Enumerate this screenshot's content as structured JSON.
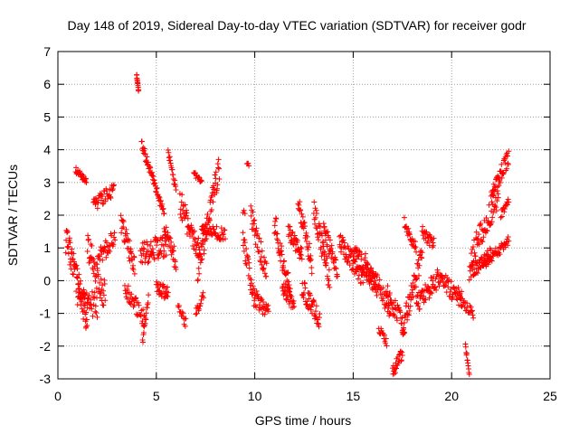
{
  "chart_data": {
    "type": "scatter",
    "title": "Day 148 of 2019, Sidereal Day-to-day VTEC variation (SDTVAR) for receiver godr",
    "xlabel": "GPS time / hours",
    "ylabel": "SDTVAR / TECUs",
    "xlim": [
      0,
      25
    ],
    "ylim": [
      -3,
      7
    ],
    "xticks": [
      "0",
      "5",
      "10",
      "15",
      "20",
      "25"
    ],
    "yticks": [
      "-3",
      "-2",
      "-1",
      "0",
      "1",
      "2",
      "3",
      "4",
      "5",
      "6",
      "7"
    ],
    "grid": true,
    "marker": "plus",
    "color": "#ff0000",
    "series": [
      {
        "name": "SDTVAR",
        "segments": [
          {
            "x0": 0.4,
            "x1": 1.5,
            "y0": 1.3,
            "y1": -1.2,
            "wob": 0.9,
            "n": 70
          },
          {
            "x0": 0.9,
            "x1": 1.45,
            "y0": 3.4,
            "y1": 3.0,
            "wob": 0.2,
            "n": 25
          },
          {
            "x0": 1.0,
            "x1": 2.0,
            "y0": -0.5,
            "y1": -0.8,
            "wob": 0.8,
            "n": 40
          },
          {
            "x0": 1.5,
            "x1": 2.4,
            "y0": 1.0,
            "y1": -0.5,
            "wob": 0.9,
            "n": 45
          },
          {
            "x0": 1.8,
            "x1": 2.85,
            "y0": 2.3,
            "y1": 2.8,
            "wob": 0.4,
            "n": 40
          },
          {
            "x0": 2.0,
            "x1": 2.9,
            "y0": 0.6,
            "y1": 1.4,
            "wob": 0.6,
            "n": 35
          },
          {
            "x0": 3.2,
            "x1": 3.9,
            "y0": 1.8,
            "y1": 0.4,
            "wob": 0.6,
            "n": 35
          },
          {
            "x0": 3.4,
            "x1": 4.4,
            "y0": -0.2,
            "y1": -1.2,
            "wob": 0.5,
            "n": 40
          },
          {
            "x0": 4.0,
            "x1": 4.1,
            "y0": 6.3,
            "y1": 5.8,
            "wob": 0.1,
            "n": 14
          },
          {
            "x0": 4.25,
            "x1": 5.4,
            "y0": 4.2,
            "y1": 2.0,
            "wob": 0.3,
            "n": 55
          },
          {
            "x0": 4.3,
            "x1": 4.6,
            "y0": -1.9,
            "y1": -0.5,
            "wob": 0.2,
            "n": 15
          },
          {
            "x0": 4.2,
            "x1": 5.5,
            "y0": 0.8,
            "y1": 1.1,
            "wob": 0.7,
            "n": 60
          },
          {
            "x0": 5.0,
            "x1": 5.6,
            "y0": -0.2,
            "y1": -0.4,
            "wob": 0.4,
            "n": 30
          },
          {
            "x0": 5.4,
            "x1": 6.0,
            "y0": 1.5,
            "y1": 0.6,
            "wob": 0.6,
            "n": 30
          },
          {
            "x0": 5.6,
            "x1": 6.0,
            "y0": 3.9,
            "y1": 2.8,
            "wob": 0.3,
            "n": 20
          },
          {
            "x0": 6.1,
            "x1": 6.5,
            "y0": -0.8,
            "y1": -1.3,
            "wob": 0.3,
            "n": 15
          },
          {
            "x0": 6.2,
            "x1": 7.2,
            "y0": 2.4,
            "y1": 0.8,
            "wob": 0.8,
            "n": 50
          },
          {
            "x0": 6.9,
            "x1": 7.3,
            "y0": 3.3,
            "y1": 3.0,
            "wob": 0.2,
            "n": 15
          },
          {
            "x0": 7.1,
            "x1": 8.2,
            "y0": 0.3,
            "y1": 3.5,
            "wob": 0.8,
            "n": 60
          },
          {
            "x0": 7.3,
            "x1": 8.5,
            "y0": 1.6,
            "y1": 1.4,
            "wob": 0.4,
            "n": 45
          },
          {
            "x0": 7.0,
            "x1": 7.4,
            "y0": -1.0,
            "y1": -0.4,
            "wob": 0.3,
            "n": 15
          },
          {
            "x0": 9.4,
            "x1": 9.5,
            "y0": 2.1,
            "y1": 2.1,
            "wob": 0.1,
            "n": 3
          },
          {
            "x0": 9.6,
            "x1": 9.7,
            "y0": 3.6,
            "y1": 3.5,
            "wob": 0.1,
            "n": 4
          },
          {
            "x0": 9.4,
            "x1": 10.0,
            "y0": 1.2,
            "y1": -0.6,
            "wob": 0.6,
            "n": 30
          },
          {
            "x0": 9.8,
            "x1": 10.6,
            "y0": 2.0,
            "y1": 0.2,
            "wob": 0.7,
            "n": 40
          },
          {
            "x0": 10.0,
            "x1": 10.7,
            "y0": -0.5,
            "y1": -1.0,
            "wob": 0.5,
            "n": 30
          },
          {
            "x0": 11.0,
            "x1": 11.8,
            "y0": 1.8,
            "y1": -0.4,
            "wob": 0.8,
            "n": 45
          },
          {
            "x0": 11.4,
            "x1": 12.0,
            "y0": -0.2,
            "y1": -0.7,
            "wob": 0.5,
            "n": 30
          },
          {
            "x0": 11.7,
            "x1": 12.4,
            "y0": 1.5,
            "y1": 0.8,
            "wob": 0.5,
            "n": 35
          },
          {
            "x0": 12.2,
            "x1": 12.9,
            "y0": 2.4,
            "y1": 0.5,
            "wob": 0.6,
            "n": 35
          },
          {
            "x0": 12.4,
            "x1": 13.3,
            "y0": -0.2,
            "y1": -1.2,
            "wob": 0.6,
            "n": 45
          },
          {
            "x0": 13.0,
            "x1": 13.8,
            "y0": 2.2,
            "y1": 0.0,
            "wob": 0.7,
            "n": 45
          },
          {
            "x0": 13.5,
            "x1": 14.2,
            "y0": 1.6,
            "y1": 0.3,
            "wob": 0.6,
            "n": 35
          },
          {
            "x0": 14.3,
            "x1": 15.5,
            "y0": 1.2,
            "y1": 0.1,
            "wob": 0.6,
            "n": 60
          },
          {
            "x0": 15.0,
            "x1": 16.2,
            "y0": 0.9,
            "y1": -0.2,
            "wob": 0.6,
            "n": 60
          },
          {
            "x0": 15.6,
            "x1": 16.9,
            "y0": 0.6,
            "y1": -0.9,
            "wob": 0.6,
            "n": 55
          },
          {
            "x0": 16.3,
            "x1": 16.7,
            "y0": -1.5,
            "y1": -1.9,
            "wob": 0.3,
            "n": 15
          },
          {
            "x0": 16.7,
            "x1": 17.6,
            "y0": -0.4,
            "y1": -1.4,
            "wob": 0.6,
            "n": 40
          },
          {
            "x0": 17.0,
            "x1": 17.5,
            "y0": -2.8,
            "y1": -2.2,
            "wob": 0.4,
            "n": 25
          },
          {
            "x0": 17.5,
            "x1": 18.5,
            "y0": -1.5,
            "y1": 0.8,
            "wob": 0.7,
            "n": 50
          },
          {
            "x0": 17.6,
            "x1": 18.2,
            "y0": 1.8,
            "y1": 1.0,
            "wob": 0.4,
            "n": 25
          },
          {
            "x0": 18.5,
            "x1": 19.1,
            "y0": 1.5,
            "y1": 1.1,
            "wob": 0.4,
            "n": 25
          },
          {
            "x0": 18.2,
            "x1": 19.5,
            "y0": -0.7,
            "y1": 0.2,
            "wob": 0.6,
            "n": 60
          },
          {
            "x0": 19.5,
            "x1": 20.5,
            "y0": 0.0,
            "y1": -0.6,
            "wob": 0.6,
            "n": 45
          },
          {
            "x0": 20.4,
            "x1": 21.1,
            "y0": -0.6,
            "y1": -1.0,
            "wob": 0.3,
            "n": 25
          },
          {
            "x0": 20.7,
            "x1": 20.9,
            "y0": -2.0,
            "y1": -2.8,
            "wob": 0.2,
            "n": 12
          },
          {
            "x0": 20.9,
            "x1": 22.0,
            "y0": 0.2,
            "y1": 0.8,
            "wob": 0.5,
            "n": 50
          },
          {
            "x0": 21.0,
            "x1": 22.4,
            "y0": 0.8,
            "y1": 2.6,
            "wob": 0.7,
            "n": 60
          },
          {
            "x0": 21.6,
            "x1": 22.9,
            "y0": 0.5,
            "y1": 1.2,
            "wob": 0.3,
            "n": 50
          },
          {
            "x0": 22.0,
            "x1": 22.9,
            "y0": 2.6,
            "y1": 3.8,
            "wob": 0.5,
            "n": 45
          },
          {
            "x0": 22.5,
            "x1": 22.9,
            "y0": 2.0,
            "y1": 2.4,
            "wob": 0.3,
            "n": 15
          }
        ]
      }
    ]
  }
}
